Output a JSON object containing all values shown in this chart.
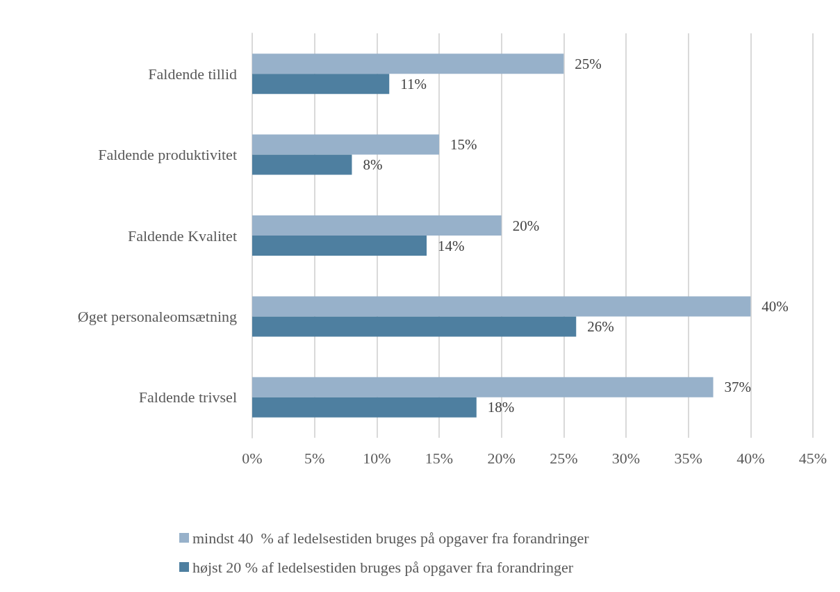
{
  "chart_data": {
    "type": "bar",
    "orientation": "horizontal",
    "categories": [
      "Faldende tillid",
      "Faldende produktivitet",
      "Faldende Kvalitet",
      "Øget personaleomsætning",
      "Faldende trivsel"
    ],
    "series": [
      {
        "name": "mindst 40  % af ledelsestiden bruges på opgaver fra forandringer",
        "color": "#97b1ca",
        "values": [
          25,
          15,
          20,
          40,
          37
        ],
        "value_labels": [
          "25%",
          "15%",
          "20%",
          "40%",
          "37%"
        ]
      },
      {
        "name": "højst 20 % af ledelsestiden bruges på opgaver fra forandringer",
        "color": "#4e7fa0",
        "values": [
          11,
          8,
          14,
          26,
          18
        ],
        "value_labels": [
          "11%",
          "8%",
          "14%",
          "26%",
          "18%"
        ]
      }
    ],
    "xlim": [
      0,
      45
    ],
    "xticks": [
      {
        "value": 0,
        "label": "0%"
      },
      {
        "value": 5,
        "label": "5%"
      },
      {
        "value": 10,
        "label": "10%"
      },
      {
        "value": 15,
        "label": "15%"
      },
      {
        "value": 20,
        "label": "20%"
      },
      {
        "value": 25,
        "label": "25%"
      },
      {
        "value": 30,
        "label": "30%"
      },
      {
        "value": 35,
        "label": "35%"
      },
      {
        "value": 40,
        "label": "40%"
      },
      {
        "value": 45,
        "label": "45%"
      }
    ],
    "grid": "x",
    "legend": "bottom"
  }
}
